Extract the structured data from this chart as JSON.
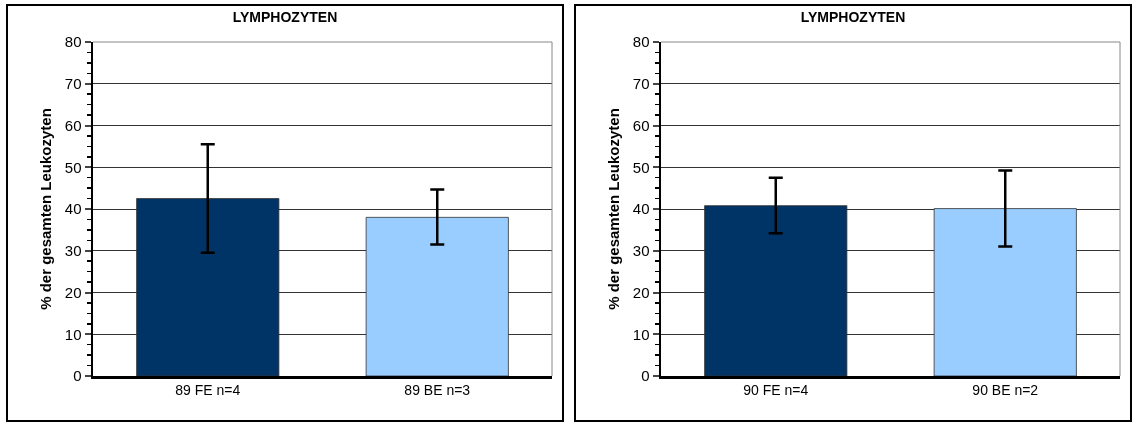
{
  "chart_data": [
    {
      "type": "bar",
      "title": "LYMPHOZYTEN",
      "ylabel": "% der gesamten Leukozyten",
      "categories": [
        "89 FE n=4",
        "89 BE n=3"
      ],
      "values": [
        42.5,
        38
      ],
      "colors": [
        "#003366",
        "#99ccff"
      ],
      "errors": [
        [
          29.5,
          55.5
        ],
        [
          31.5,
          44.7
        ]
      ],
      "ylim": [
        0,
        80
      ],
      "yticks": [
        0,
        10,
        20,
        30,
        40,
        50,
        60,
        70,
        80
      ],
      "grid": "y"
    },
    {
      "type": "bar",
      "title": "LYMPHOZYTEN",
      "ylabel": "% der gesamten Leukozyten",
      "categories": [
        "90 FE n=4",
        "90 BE n=2"
      ],
      "values": [
        40.8,
        40.1
      ],
      "colors": [
        "#003366",
        "#99ccff"
      ],
      "errors": [
        [
          34.2,
          47.5
        ],
        [
          31,
          49.2
        ]
      ],
      "ylim": [
        0,
        80
      ],
      "yticks": [
        0,
        10,
        20,
        30,
        40,
        50,
        60,
        70,
        80
      ],
      "grid": "y"
    }
  ]
}
